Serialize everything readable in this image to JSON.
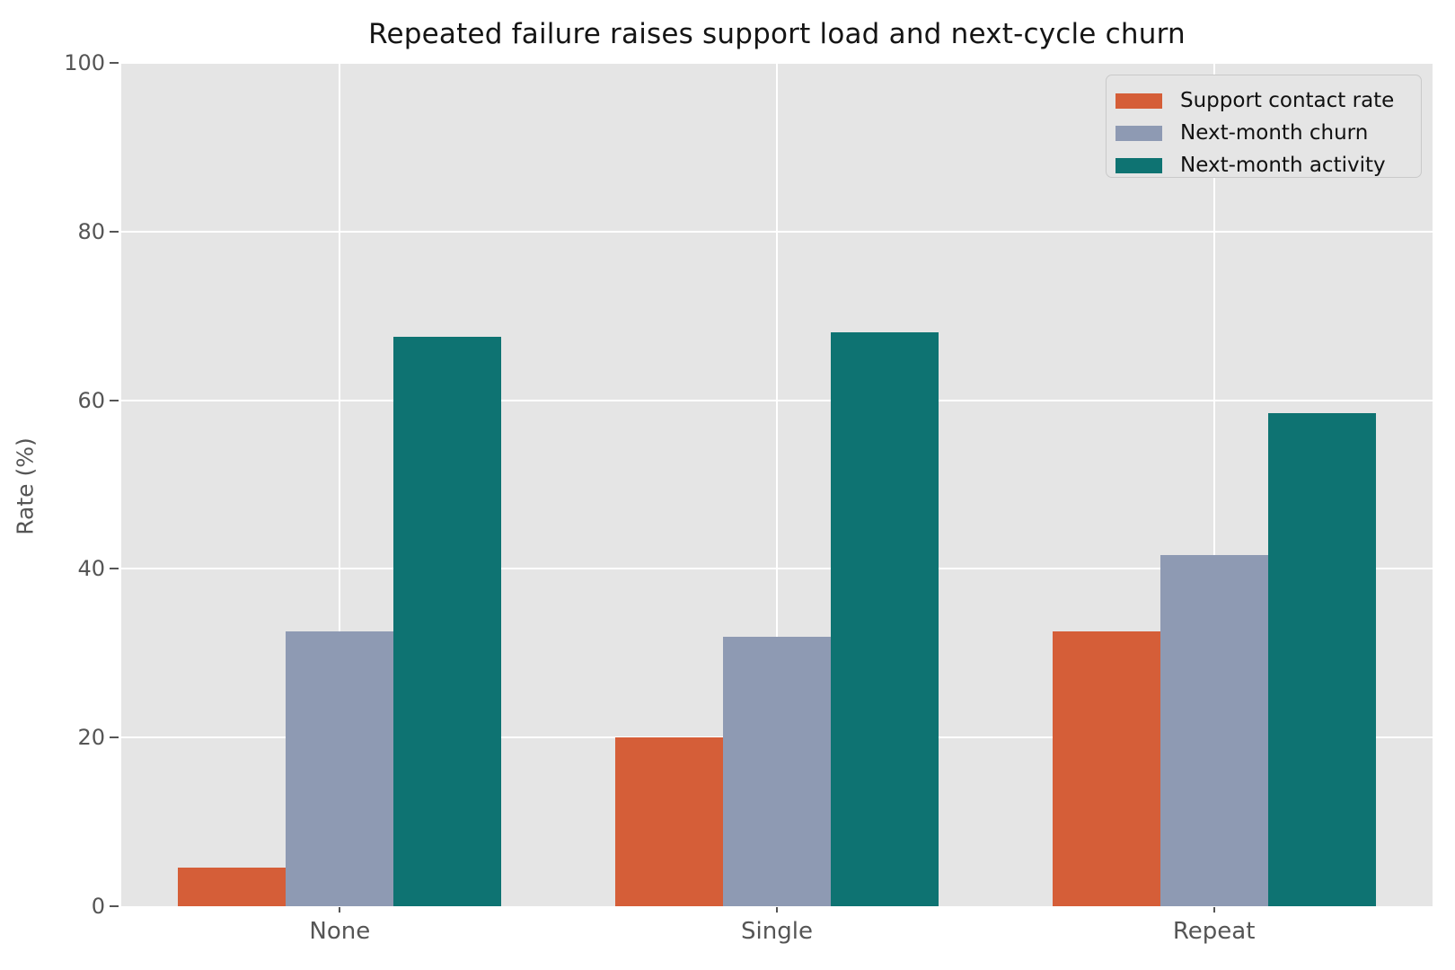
{
  "chart_data": {
    "type": "bar",
    "title": "Repeated failure raises support load and next-cycle churn",
    "xlabel": "",
    "ylabel": "Rate (%)",
    "categories": [
      "None",
      "Single",
      "Repeat"
    ],
    "series": [
      {
        "name": "Support contact rate",
        "color": "#d55e38",
        "values": [
          4.6,
          20.0,
          32.6
        ]
      },
      {
        "name": "Next-month churn",
        "color": "#8e9ab3",
        "values": [
          32.6,
          32.0,
          41.6
        ]
      },
      {
        "name": "Next-month activity",
        "color": "#0e7372",
        "values": [
          67.5,
          68.0,
          58.5
        ]
      }
    ],
    "ylim": [
      0,
      100
    ],
    "yticks": [
      0,
      20,
      40,
      60,
      80,
      100
    ],
    "grid": true,
    "legend_position": "upper right"
  },
  "style": {
    "plot_background": "#e5e5e5",
    "figure_background": "#ffffff",
    "grid_color": "#ffffff",
    "tick_color": "#555555",
    "title_color": "#151515",
    "legend_border": "#c9c9c9"
  }
}
